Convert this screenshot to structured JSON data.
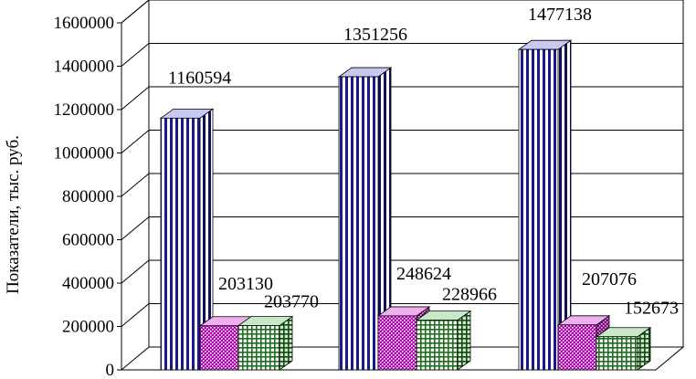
{
  "chart_data": {
    "type": "bar",
    "ylabel": "Показатели, тыс. руб.",
    "ylim": [
      0,
      1600000
    ],
    "yticks": [
      0,
      200000,
      400000,
      600000,
      800000,
      1000000,
      1200000,
      1400000,
      1600000
    ],
    "ytick_labels": [
      "0",
      "200000",
      "400000",
      "600000",
      "800000",
      "1000000",
      "1200000",
      "1400000",
      "1600000"
    ],
    "grid": true,
    "categories": [
      "",
      "",
      ""
    ],
    "series": [
      {
        "values": [
          1160594,
          1351256,
          1477138
        ],
        "labels": [
          "1160594",
          "1351256",
          "1477138"
        ],
        "color": "#1a1a8c",
        "pattern": "vertical-stripes"
      },
      {
        "values": [
          203130,
          248624,
          207076
        ],
        "labels": [
          "203130",
          "248624",
          "207076"
        ],
        "color": "#b000b0",
        "pattern": "dots"
      },
      {
        "values": [
          203770,
          228966,
          152673
        ],
        "labels": [
          "203770",
          "228966",
          "152673"
        ],
        "color": "#1e6e1e",
        "pattern": "grid"
      }
    ]
  }
}
